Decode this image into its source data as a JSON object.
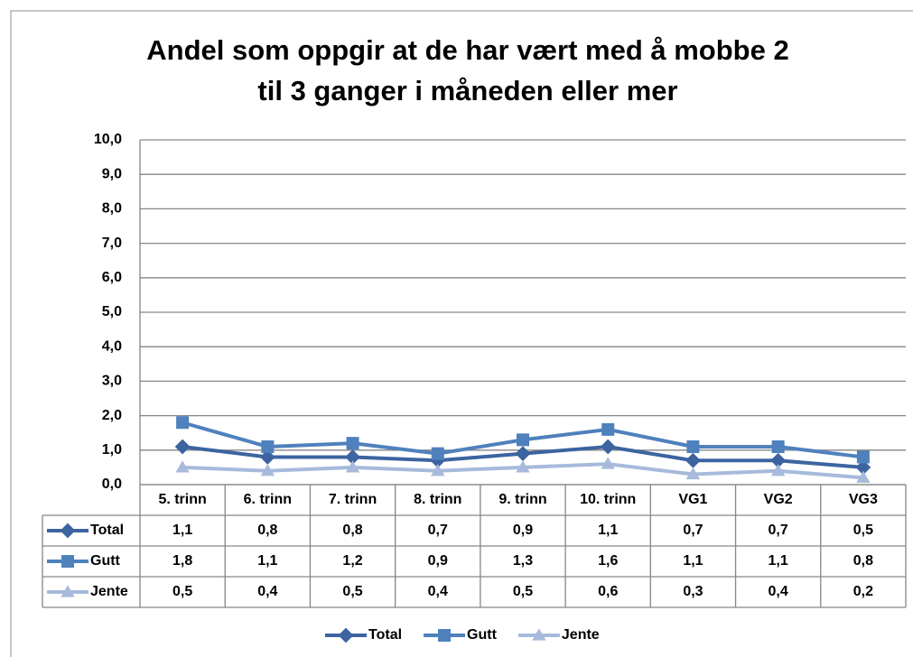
{
  "chart_data": {
    "type": "line",
    "title": [
      "Andel som oppgir at de har vært med å mobbe 2",
      "til 3 ganger i måneden eller mer"
    ],
    "categories": [
      "5. trinn",
      "6. trinn",
      "7. trinn",
      "8. trinn",
      "9. trinn",
      "10. trinn",
      "VG1",
      "VG2",
      "VG3"
    ],
    "series": [
      {
        "name": "Total",
        "color": "#3b64a0",
        "marker": "diamond",
        "values": [
          1.1,
          0.8,
          0.8,
          0.7,
          0.9,
          1.1,
          0.7,
          0.7,
          0.5
        ],
        "value_labels": [
          "1,1",
          "0,8",
          "0,8",
          "0,7",
          "0,9",
          "1,1",
          "0,7",
          "0,7",
          "0,5"
        ]
      },
      {
        "name": "Gutt",
        "color": "#4f81bd",
        "marker": "square",
        "values": [
          1.8,
          1.1,
          1.2,
          0.9,
          1.3,
          1.6,
          1.1,
          1.1,
          0.8
        ],
        "value_labels": [
          "1,8",
          "1,1",
          "1,2",
          "0,9",
          "1,3",
          "1,6",
          "1,1",
          "1,1",
          "0,8"
        ]
      },
      {
        "name": "Jente",
        "color": "#a7badc",
        "marker": "triangle",
        "values": [
          0.5,
          0.4,
          0.5,
          0.4,
          0.5,
          0.6,
          0.3,
          0.4,
          0.2
        ],
        "value_labels": [
          "0,5",
          "0,4",
          "0,5",
          "0,4",
          "0,5",
          "0,6",
          "0,3",
          "0,4",
          "0,2"
        ]
      }
    ],
    "ylim": [
      0,
      10
    ],
    "yticks": [
      {
        "value": 0,
        "label": "0,0"
      },
      {
        "value": 1,
        "label": "1,0"
      },
      {
        "value": 2,
        "label": "2,0"
      },
      {
        "value": 3,
        "label": "3,0"
      },
      {
        "value": 4,
        "label": "4,0"
      },
      {
        "value": 5,
        "label": "5,0"
      },
      {
        "value": 6,
        "label": "6,0"
      },
      {
        "value": 7,
        "label": "7,0"
      },
      {
        "value": 8,
        "label": "8,0"
      },
      {
        "value": 9,
        "label": "9,0"
      },
      {
        "value": 10,
        "label": "10,0"
      }
    ],
    "grid": true,
    "legend": "bottom",
    "data_table": true
  }
}
